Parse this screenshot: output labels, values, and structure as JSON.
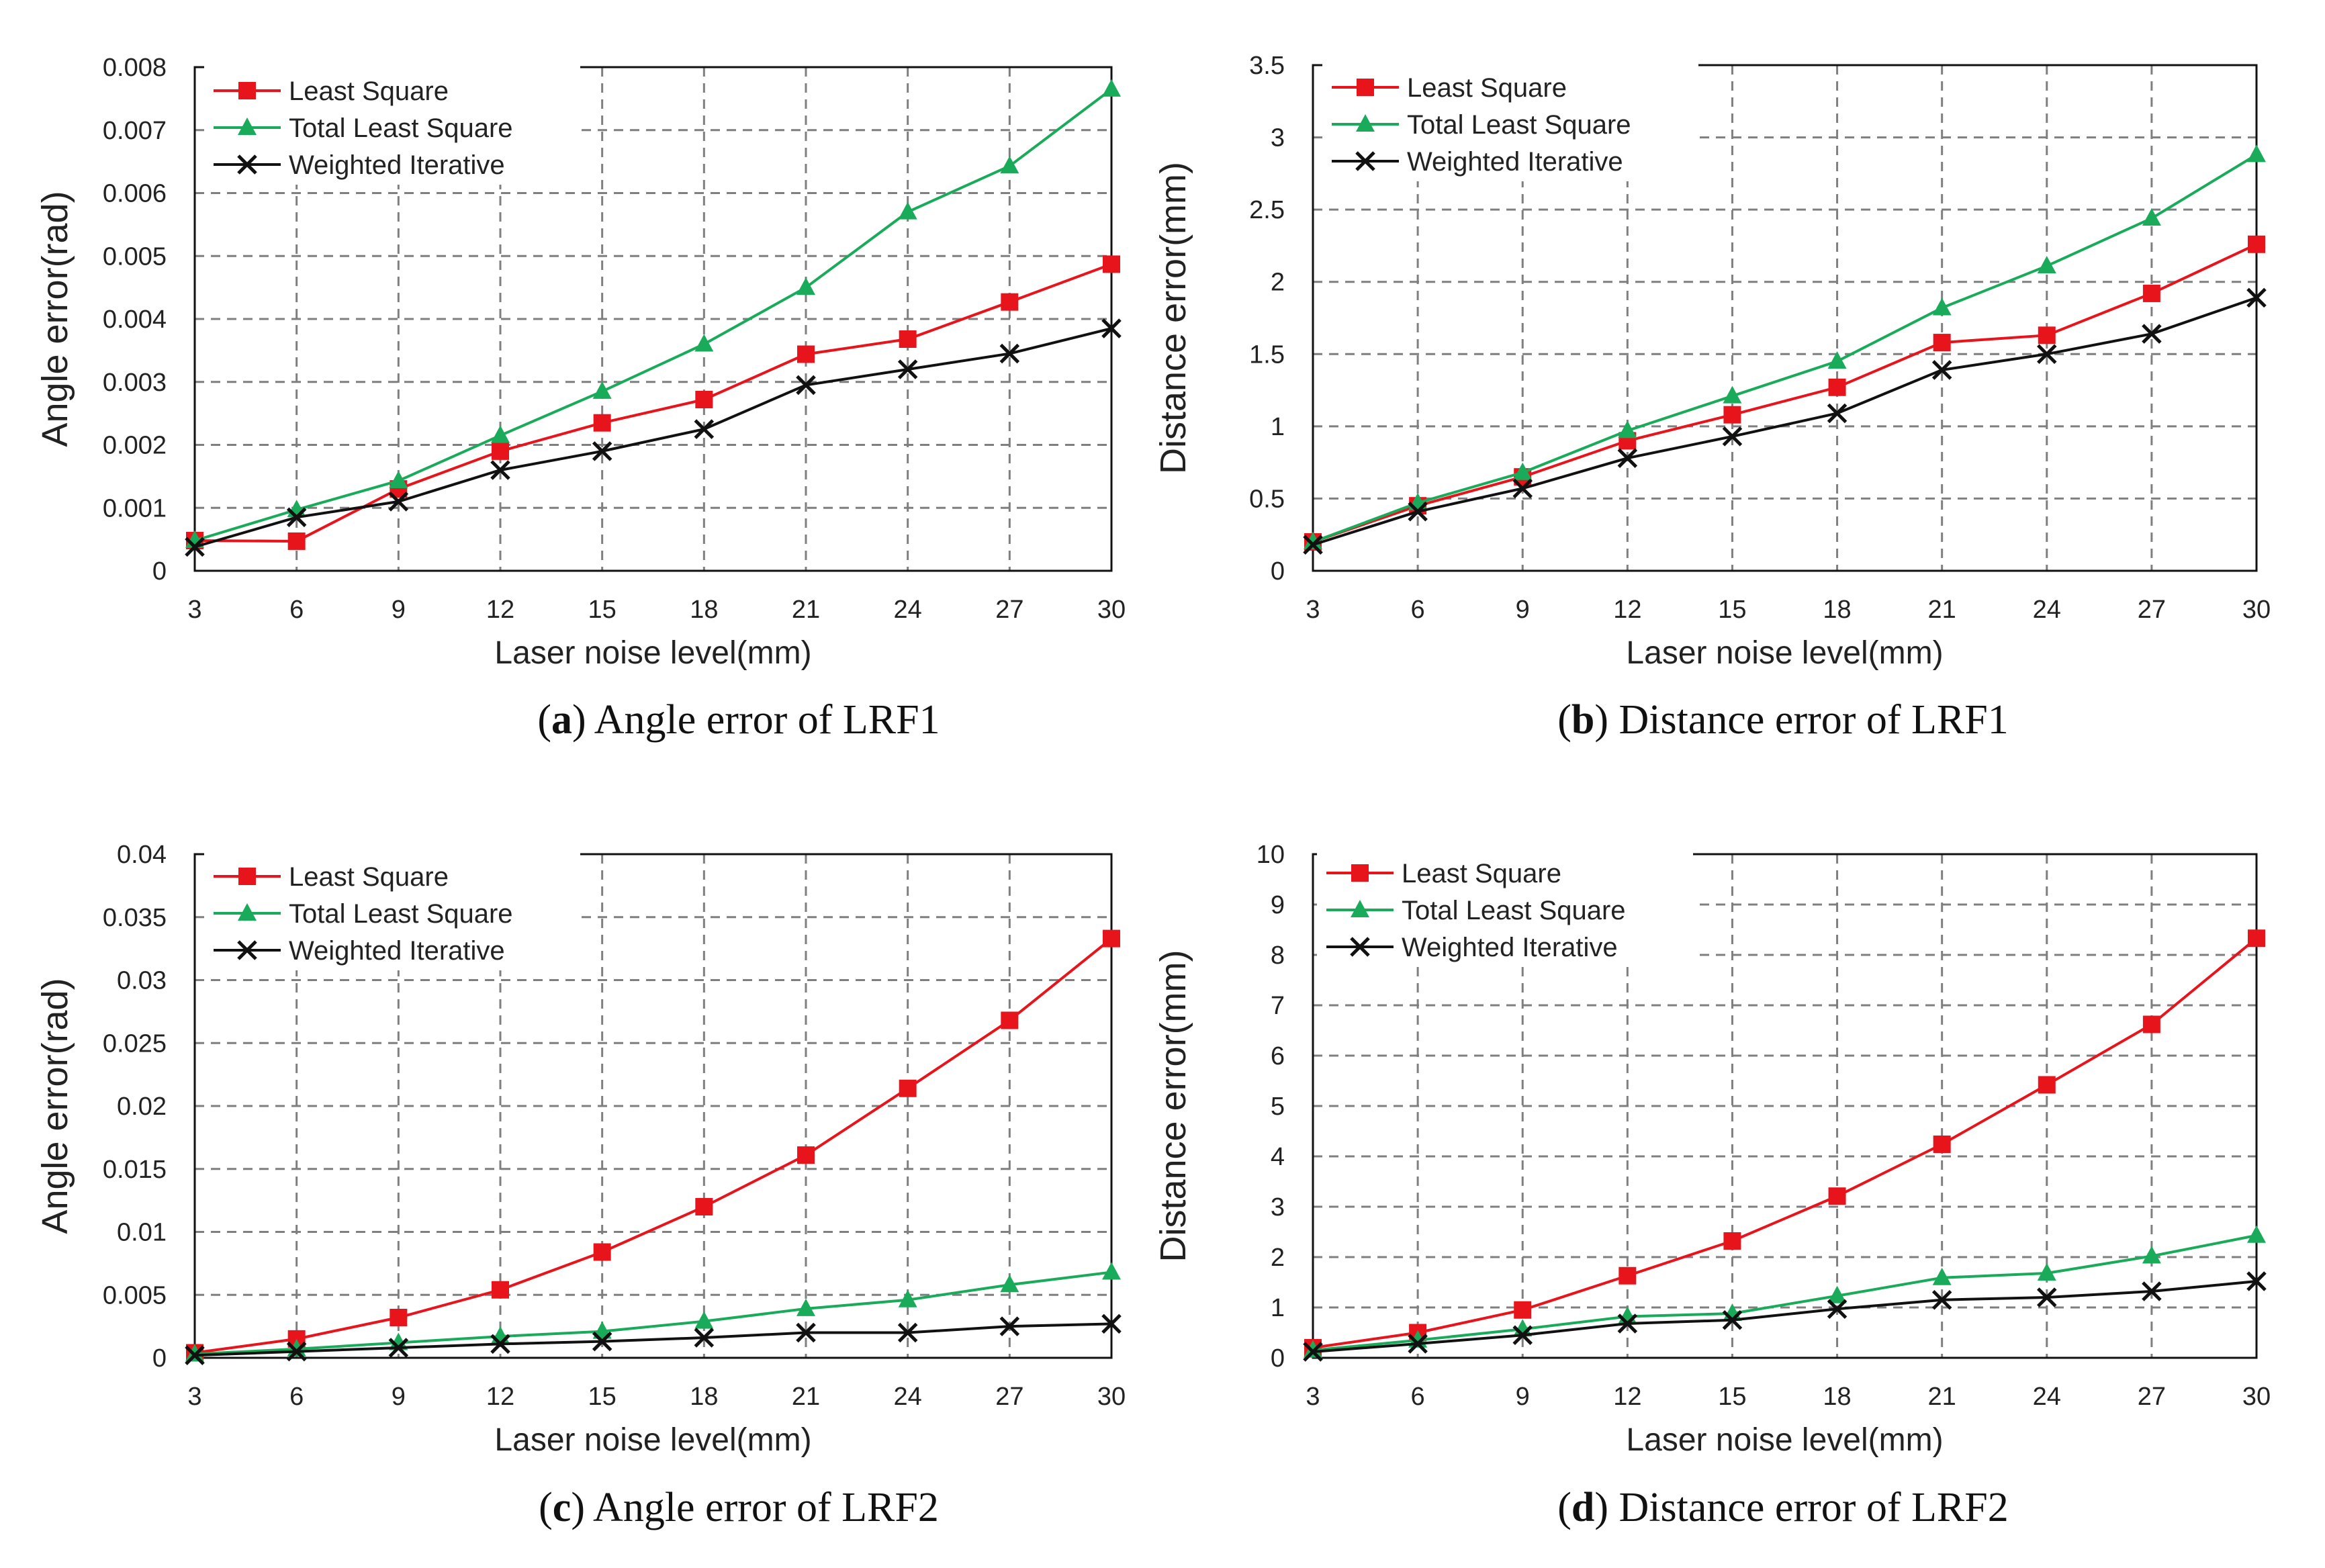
{
  "colors": {
    "least_square": "#e8141c",
    "total_least_square": "#1aab5a",
    "weighted_iterative": "#111111",
    "grid": "#7f7f7f"
  },
  "chart_data": [
    {
      "id": "a",
      "type": "line",
      "caption_letter": "a",
      "caption_text": "Angle error of LRF1",
      "xlabel": "Laser noise level(mm)",
      "ylabel": "Angle error(rad)",
      "x": [
        3,
        6,
        9,
        12,
        15,
        18,
        21,
        24,
        27,
        30
      ],
      "ylim": [
        0,
        0.008
      ],
      "yticks": [
        "0",
        "0.001",
        "0.002",
        "0.003",
        "0.004",
        "0.005",
        "0.006",
        "0.007",
        "0.008"
      ],
      "grid": true,
      "legend": "top-left",
      "series": [
        {
          "name": "Least Square",
          "marker": "square",
          "values": [
            0.00048,
            0.00047,
            0.0013,
            0.0019,
            0.00235,
            0.00272,
            0.00344,
            0.00368,
            0.00427,
            0.00487
          ]
        },
        {
          "name": "Total Least Square",
          "marker": "triangle",
          "values": [
            0.00048,
            0.00097,
            0.00143,
            0.00215,
            0.00285,
            0.0036,
            0.0045,
            0.0057,
            0.00643,
            0.00765
          ]
        },
        {
          "name": "Weighted Iterative",
          "marker": "x",
          "values": [
            0.00038,
            0.00085,
            0.0011,
            0.0016,
            0.0019,
            0.00225,
            0.00295,
            0.0032,
            0.00345,
            0.00385
          ]
        }
      ]
    },
    {
      "id": "b",
      "type": "line",
      "caption_letter": "b",
      "caption_text": "Distance error of LRF1",
      "xlabel": "Laser noise level(mm)",
      "ylabel": "Distance error(mm)",
      "x": [
        3,
        6,
        9,
        12,
        15,
        18,
        21,
        24,
        27,
        30
      ],
      "ylim": [
        0,
        3.5
      ],
      "yticks": [
        "0",
        "0.5",
        "1",
        "1.5",
        "2",
        "2.5",
        "3",
        "3.5"
      ],
      "grid": true,
      "legend": "top-left",
      "series": [
        {
          "name": "Least Square",
          "marker": "square",
          "values": [
            0.2,
            0.45,
            0.65,
            0.9,
            1.08,
            1.27,
            1.58,
            1.63,
            1.92,
            2.26
          ]
        },
        {
          "name": "Total Least Square",
          "marker": "triangle",
          "values": [
            0.2,
            0.47,
            0.68,
            0.97,
            1.21,
            1.45,
            1.82,
            2.11,
            2.44,
            2.88
          ]
        },
        {
          "name": "Weighted Iterative",
          "marker": "x",
          "values": [
            0.18,
            0.41,
            0.57,
            0.78,
            0.93,
            1.09,
            1.39,
            1.5,
            1.64,
            1.89
          ]
        }
      ]
    },
    {
      "id": "c",
      "type": "line",
      "caption_letter": "c",
      "caption_text": "Angle error of LRF2",
      "xlabel": "Laser noise level(mm)",
      "ylabel": "Angle error(rad)",
      "x": [
        3,
        6,
        9,
        12,
        15,
        18,
        21,
        24,
        27,
        30
      ],
      "ylim": [
        0,
        0.04
      ],
      "yticks": [
        "0",
        "0.005",
        "0.01",
        "0.015",
        "0.02",
        "0.025",
        "0.03",
        "0.035",
        "0.04"
      ],
      "grid": true,
      "legend": "top-left",
      "series": [
        {
          "name": "Least Square",
          "marker": "square",
          "values": [
            0.0004,
            0.0015,
            0.0032,
            0.0054,
            0.0084,
            0.012,
            0.0161,
            0.0214,
            0.0268,
            0.0333
          ]
        },
        {
          "name": "Total Least Square",
          "marker": "triangle",
          "values": [
            0.0003,
            0.0007,
            0.0012,
            0.0017,
            0.0021,
            0.0029,
            0.0039,
            0.0046,
            0.0058,
            0.0068
          ]
        },
        {
          "name": "Weighted Iterative",
          "marker": "x",
          "values": [
            0.0002,
            0.0005,
            0.0008,
            0.0011,
            0.0013,
            0.0016,
            0.002,
            0.002,
            0.0025,
            0.0027
          ]
        }
      ]
    },
    {
      "id": "d",
      "type": "line",
      "caption_letter": "d",
      "caption_text": "Distance error of LRF2",
      "xlabel": "Laser noise level(mm)",
      "ylabel": "Distance error(mm)",
      "x": [
        3,
        6,
        9,
        12,
        15,
        18,
        21,
        24,
        27,
        30
      ],
      "ylim": [
        0,
        10
      ],
      "yticks": [
        "0",
        "1",
        "2",
        "3",
        "4",
        "5",
        "6",
        "7",
        "8",
        "9",
        "10"
      ],
      "grid": true,
      "legend": "top-left",
      "series": [
        {
          "name": "Least Square",
          "marker": "square",
          "values": [
            0.2,
            0.5,
            0.95,
            1.63,
            2.32,
            3.21,
            4.24,
            5.42,
            6.62,
            8.33
          ]
        },
        {
          "name": "Total Least Square",
          "marker": "triangle",
          "values": [
            0.15,
            0.35,
            0.57,
            0.82,
            0.88,
            1.23,
            1.59,
            1.68,
            2.02,
            2.43
          ]
        },
        {
          "name": "Weighted Iterative",
          "marker": "x",
          "values": [
            0.12,
            0.28,
            0.45,
            0.68,
            0.75,
            0.97,
            1.15,
            1.2,
            1.32,
            1.52
          ]
        }
      ]
    }
  ]
}
